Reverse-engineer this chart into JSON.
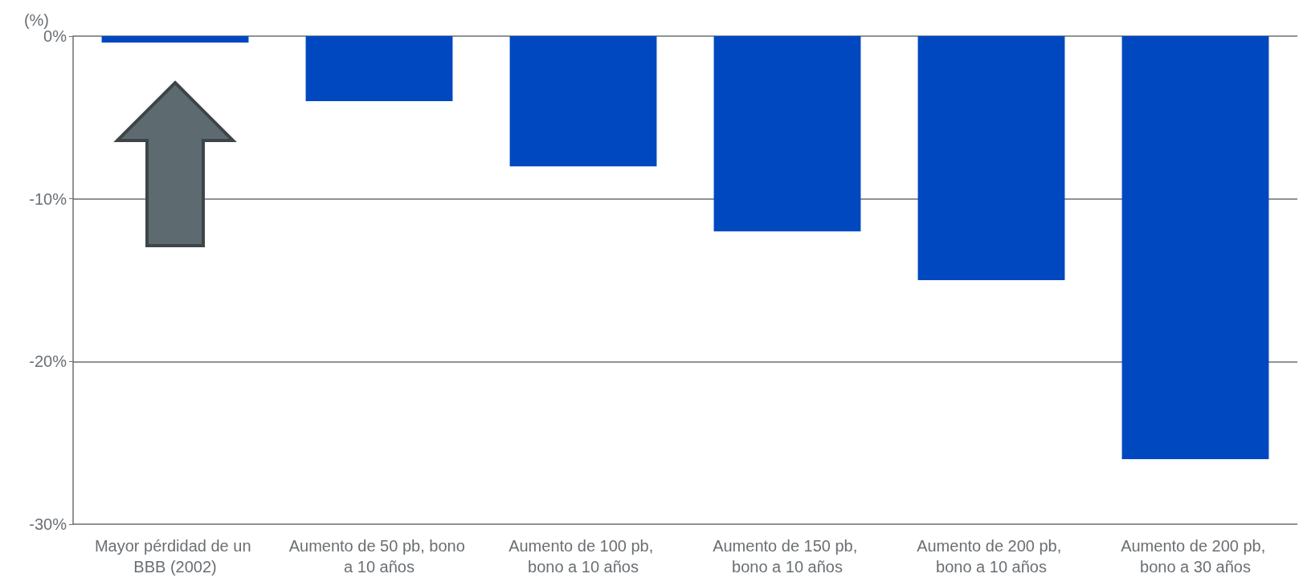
{
  "chart_data": {
    "type": "bar",
    "ylabel": "(%)",
    "categories": [
      "Mayor pérdidad de un BBB (2002)",
      "Aumento de 50 pb, bono a 10 años",
      "Aumento de 100 pb, bono a 10 años",
      "Aumento de 150 pb, bono a 10 años",
      "Aumento de 200 pb, bono a 10 años",
      "Aumento de 200 pb, bono a 30 años"
    ],
    "values": [
      -0.4,
      -4,
      -8,
      -12,
      -15,
      -26
    ],
    "color": "#0048c0",
    "ylim": [
      -30,
      0
    ],
    "yticks": [
      {
        "value": -30,
        "label": "-30%"
      },
      {
        "value": -20,
        "label": "-20%"
      },
      {
        "value": -10,
        "label": "-10%"
      },
      {
        "value": 0,
        "label": "0%"
      }
    ],
    "grid": "y"
  }
}
